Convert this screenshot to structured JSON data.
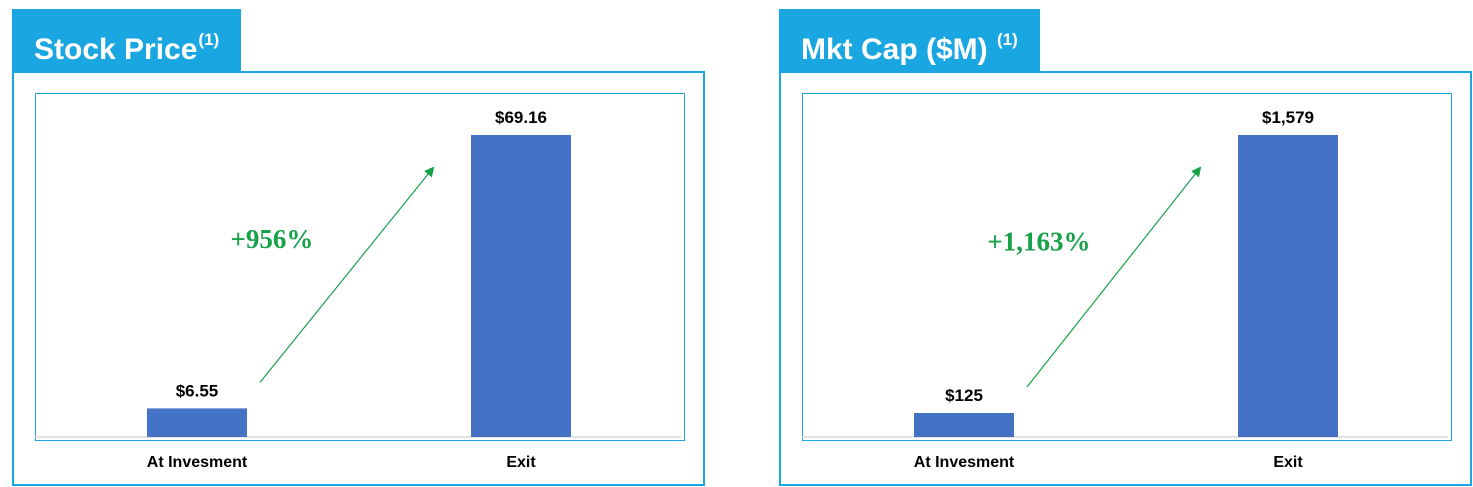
{
  "colors": {
    "accent": "#1aa6e0",
    "bar": "#4472c4",
    "growth": "#17a24a"
  },
  "panels": [
    {
      "title": "Stock Price",
      "superscript": "(1)"
    },
    {
      "title": "Mkt Cap ($M)",
      "superscript": "(1)"
    }
  ],
  "chart_data": [
    {
      "type": "bar",
      "categories": [
        "At Invesment",
        "Exit"
      ],
      "values": [
        6.55,
        69.16
      ],
      "value_labels": [
        "$6.55",
        "$69.16"
      ],
      "annotation": "+956%",
      "title": "Stock Price(1)",
      "legend": "none",
      "grid": false
    },
    {
      "type": "bar",
      "categories": [
        "At Invesment",
        "Exit"
      ],
      "values": [
        125,
        1579
      ],
      "value_labels": [
        "$125",
        "$1,579"
      ],
      "annotation": "+1,163%",
      "title": "Mkt Cap ($M) (1)",
      "legend": "none",
      "grid": false
    }
  ]
}
